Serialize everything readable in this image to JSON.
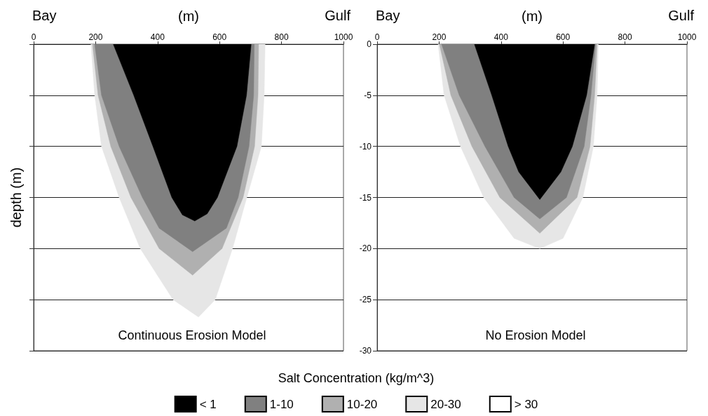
{
  "chart_data": [
    {
      "type": "area",
      "title": "Continuous Erosion Model",
      "xlabel": "(m)",
      "ylabel": "depth (m)",
      "legend_title": "Salt Concentration (kg/m^3)",
      "annotations": [
        "Bay",
        "Gulf"
      ],
      "xlim": [
        0,
        1000
      ],
      "xticks": [
        0,
        200,
        400,
        600,
        800,
        1000
      ],
      "ylim": [
        -30,
        0
      ],
      "yticks": [
        0,
        -5,
        -10,
        -15,
        -20,
        -25,
        -30
      ],
      "tick_labels": "x",
      "grid": "y",
      "legend": "bottom",
      "series": [
        {
          "name": "< 1",
          "color": "#000000",
          "x": [
            257,
            323,
            385,
            446,
            480,
            520,
            560,
            593,
            656,
            687,
            702
          ],
          "values": [
            0,
            -5,
            -10,
            -15,
            -16.7,
            -17.3,
            -16.6,
            -15,
            -10,
            -5,
            0
          ]
        },
        {
          "name": "1-10",
          "color": "#808080",
          "x": [
            197,
            219,
            276,
            351,
            405,
            513,
            622,
            660,
            695,
            710,
            712
          ],
          "values": [
            0,
            -5,
            -10,
            -15,
            -18,
            -20.3,
            -18,
            -15,
            -10,
            -5,
            0
          ]
        },
        {
          "name": "10-20",
          "color": "#b0b0b0",
          "x": [
            190,
            208,
            249,
            314,
            405,
            513,
            608,
            676,
            713,
            724,
            726
          ],
          "values": [
            0,
            -5,
            -10,
            -15,
            -20,
            -22.6,
            -20,
            -15,
            -10,
            -5,
            0
          ]
        },
        {
          "name": "20-30",
          "color": "#e6e6e6",
          "x": [
            185,
            197,
            219,
            276,
            344,
            450,
            532,
            586,
            642,
            688,
            735,
            744,
            747
          ],
          "values": [
            0,
            -5,
            -10,
            -15,
            -20,
            -25,
            -26.7,
            -25,
            -20,
            -15,
            -10,
            -5,
            0
          ]
        },
        {
          "name": "> 30",
          "color": "#ffffff"
        }
      ]
    },
    {
      "type": "area",
      "title": "No Erosion Model",
      "xlabel": "(m)",
      "annotations": [
        "Bay",
        "Gulf"
      ],
      "xlim": [
        0,
        1000
      ],
      "xticks": [
        0,
        200,
        400,
        600,
        800,
        1000
      ],
      "ylim": [
        -30,
        0
      ],
      "yticks": [
        0,
        -5,
        -10,
        -15,
        -20,
        -25,
        -30
      ],
      "grid": "y",
      "series": [
        {
          "color": "#000000",
          "x": [
            314,
            370,
            423,
            457,
            525,
            593,
            630,
            676,
            702
          ],
          "values": [
            0,
            -5,
            -10,
            -12.5,
            -15.2,
            -12.5,
            -10,
            -5,
            0
          ]
        },
        {
          "color": "#808080",
          "x": [
            208,
            265,
            348,
            442,
            525,
            611,
            668,
            690,
            705
          ],
          "values": [
            0,
            -5,
            -10,
            -15,
            -17.1,
            -15,
            -10,
            -5,
            0
          ]
        },
        {
          "color": "#b0b0b0",
          "x": [
            201,
            238,
            306,
            396,
            525,
            645,
            687,
            702,
            710
          ],
          "values": [
            0,
            -5,
            -10,
            -15,
            -18.5,
            -15,
            -10,
            -5,
            0
          ]
        },
        {
          "color": "#e6e6e6",
          "x": [
            197,
            216,
            269,
            344,
            442,
            525,
            600,
            664,
            698,
            710,
            714
          ],
          "values": [
            0,
            -5,
            -10,
            -15,
            -19,
            -20,
            -19,
            -15,
            -10,
            -5,
            0
          ]
        }
      ]
    }
  ]
}
